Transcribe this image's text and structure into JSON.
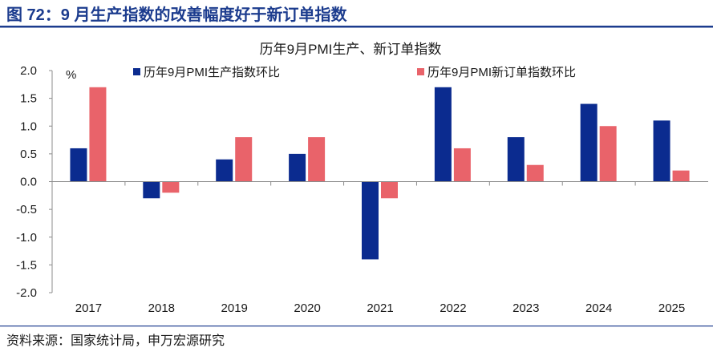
{
  "header": {
    "title": "图 72：9 月生产指数的改善幅度好于新订单指数"
  },
  "footer": {
    "source": "资料来源：国家统计局，申万宏源研究"
  },
  "colors": {
    "header": "#1c3c8e",
    "series1": "#0b2b8f",
    "series2": "#e9636a"
  },
  "chart_data": {
    "type": "bar",
    "title": "历年9月PMI生产、新订单指数",
    "xlabel": "",
    "ylabel": "%",
    "categories": [
      "2017",
      "2018",
      "2019",
      "2020",
      "2021",
      "2022",
      "2023",
      "2024",
      "2025"
    ],
    "series": [
      {
        "name": "历年9月PMI生产指数环比",
        "color": "#0b2b8f",
        "values": [
          0.6,
          -0.3,
          0.4,
          0.5,
          -1.4,
          1.7,
          0.8,
          1.4,
          1.1
        ]
      },
      {
        "name": "历年9月PMI新订单指数环比",
        "color": "#e9636a",
        "values": [
          1.7,
          -0.2,
          0.8,
          0.8,
          -0.3,
          0.6,
          0.3,
          1.0,
          0.2
        ]
      }
    ],
    "ylim": [
      -2.0,
      2.0
    ],
    "yticks": [
      "2.0",
      "1.5",
      "1.0",
      "0.5",
      "0.0",
      "-0.5",
      "-1.0",
      "-1.5",
      "-2.0"
    ],
    "grid": false,
    "legend_position": "top"
  }
}
